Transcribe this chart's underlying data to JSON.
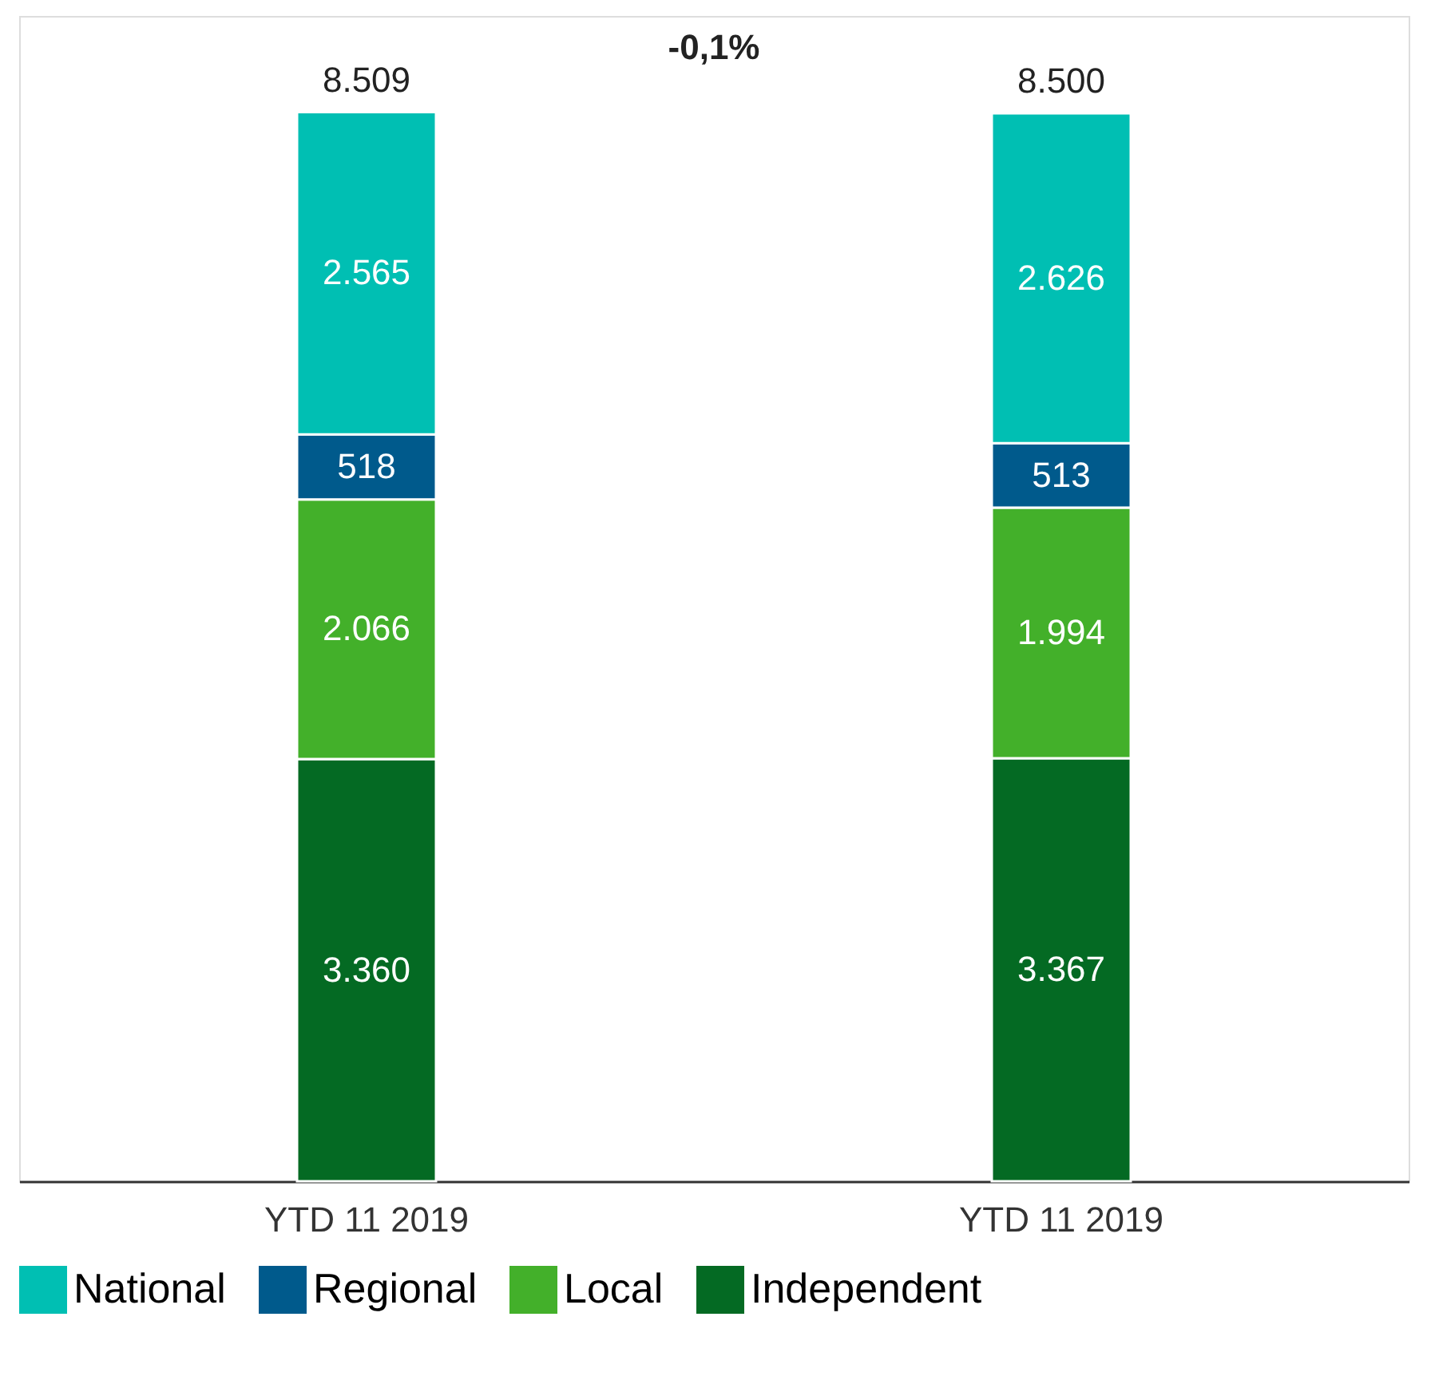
{
  "chart_data": {
    "type": "bar",
    "stacked": true,
    "categories": [
      "YTD 11 2019",
      "YTD 11 2019"
    ],
    "series": [
      {
        "name": "Independent",
        "color": "#046a23",
        "values": [
          3360,
          3367
        ],
        "value_labels": [
          "3.360",
          "3.367"
        ]
      },
      {
        "name": "Local",
        "color": "#43b02a",
        "values": [
          2066,
          1994
        ],
        "value_labels": [
          "2.066",
          "1.994"
        ]
      },
      {
        "name": "Regional",
        "color": "#005a8c",
        "values": [
          518,
          513
        ],
        "value_labels": [
          "518",
          "513"
        ]
      },
      {
        "name": "National",
        "color": "#00bfb3",
        "values": [
          2565,
          2626
        ],
        "value_labels": [
          "2.565",
          "2.626"
        ]
      }
    ],
    "totals": [
      "8.509",
      "8.500"
    ],
    "annotations": [
      "-0,1%"
    ],
    "legend": "bottom",
    "grid": false
  }
}
